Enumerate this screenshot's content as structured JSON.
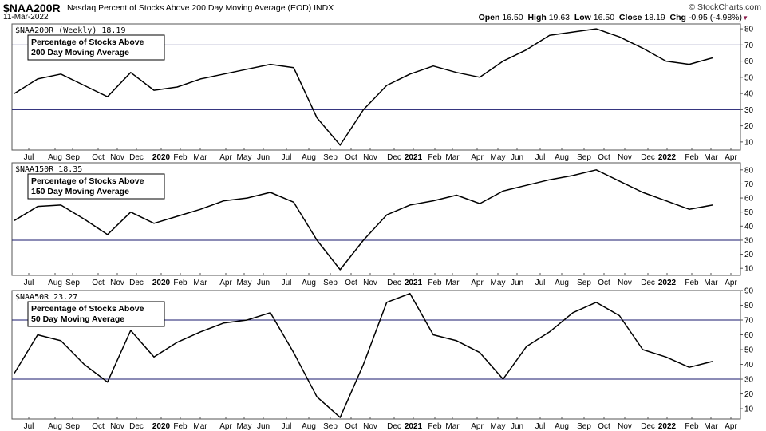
{
  "header": {
    "symbol": "$NAA200R",
    "description": "Nasdaq Percent of Stocks Above 200 Day Moving Average (EOD)  INDX",
    "date": "11-Mar-2022",
    "brand": "© StockCharts.com",
    "open_label": "Open",
    "open": "16.50",
    "high_label": "High",
    "high": "19.63",
    "low_label": "Low",
    "low": "16.50",
    "close_label": "Close",
    "close": "18.19",
    "chg_label": "Chg",
    "chg": "-0.95 (-4.98%)"
  },
  "colors": {
    "reference_line": "#1a1a6e",
    "price_line": "#000000",
    "frame": "#555555"
  },
  "chart_data": [
    {
      "type": "line",
      "title": "$NAA200R (Weekly) 18.19",
      "annotation": [
        "Percentage of Stocks Above",
        "200 Day Moving Average"
      ],
      "ylim": [
        5,
        83
      ],
      "yticks": [
        10,
        20,
        30,
        40,
        50,
        60,
        70,
        80
      ],
      "reference_lines": [
        30,
        70
      ],
      "x": [
        0,
        1.5,
        3,
        4.5,
        6,
        7.5,
        9,
        10.5,
        12,
        13.5,
        15,
        16.5,
        18,
        19.5,
        21,
        22.5,
        24,
        25.5,
        27,
        28.5,
        30,
        31.5,
        33,
        34.5,
        36,
        37.5,
        39,
        40.5,
        42,
        43.5,
        45
      ],
      "values": [
        40,
        49,
        52,
        45,
        38,
        53,
        42,
        44,
        49,
        52,
        55,
        58,
        56,
        25,
        8,
        30,
        45,
        52,
        57,
        53,
        50,
        60,
        67,
        76,
        78,
        80,
        75,
        68,
        60,
        58,
        62
      ]
    },
    {
      "type": "line",
      "title": "$NAA150R 18.35",
      "annotation": [
        "Percentage of Stocks Above",
        "150 Day Moving Average"
      ],
      "ylim": [
        5,
        85
      ],
      "yticks": [
        10,
        20,
        30,
        40,
        50,
        60,
        70,
        80
      ],
      "reference_lines": [
        30,
        70
      ],
      "x": [
        0,
        1.5,
        3,
        4.5,
        6,
        7.5,
        9,
        10.5,
        12,
        13.5,
        15,
        16.5,
        18,
        19.5,
        21,
        22.5,
        24,
        25.5,
        27,
        28.5,
        30,
        31.5,
        33,
        34.5,
        36,
        37.5,
        39,
        40.5,
        42,
        43.5,
        45
      ],
      "values": [
        44,
        54,
        55,
        45,
        34,
        50,
        42,
        47,
        52,
        58,
        60,
        64,
        57,
        30,
        9,
        30,
        48,
        55,
        58,
        62,
        56,
        65,
        69,
        73,
        76,
        80,
        72,
        64,
        58,
        52,
        55
      ]
    },
    {
      "type": "line",
      "title": "$NAA50R 23.27",
      "annotation": [
        "Percentage of Stocks Above",
        "50 Day Moving Average"
      ],
      "ylim": [
        3,
        90
      ],
      "yticks": [
        10,
        20,
        30,
        40,
        50,
        60,
        70,
        80,
        90
      ],
      "reference_lines": [
        30,
        70
      ],
      "x": [
        0,
        1.5,
        3,
        4.5,
        6,
        7.5,
        9,
        10.5,
        12,
        13.5,
        15,
        16.5,
        18,
        19.5,
        21,
        22.5,
        24,
        25.5,
        27,
        28.5,
        30,
        31.5,
        33,
        34.5,
        36,
        37.5,
        39,
        40.5,
        42,
        43.5,
        45
      ],
      "values": [
        34,
        60,
        56,
        40,
        28,
        63,
        45,
        55,
        62,
        68,
        70,
        75,
        48,
        18,
        4,
        40,
        82,
        88,
        60,
        56,
        48,
        30,
        52,
        62,
        75,
        82,
        73,
        50,
        45,
        38,
        42
      ]
    }
  ],
  "x_axis": {
    "ticks": [
      {
        "label": "Jul",
        "bold": false
      },
      {
        "label": "Aug",
        "bold": false
      },
      {
        "label": "Sep",
        "bold": false
      },
      {
        "label": "Oct",
        "bold": false
      },
      {
        "label": "Nov",
        "bold": false
      },
      {
        "label": "Dec",
        "bold": false
      },
      {
        "label": "2020",
        "bold": true
      },
      {
        "label": "Feb",
        "bold": false
      },
      {
        "label": "Mar",
        "bold": false
      },
      {
        "label": "Apr",
        "bold": false
      },
      {
        "label": "May",
        "bold": false
      },
      {
        "label": "Jun",
        "bold": false
      },
      {
        "label": "Jul",
        "bold": false
      },
      {
        "label": "Aug",
        "bold": false
      },
      {
        "label": "Sep",
        "bold": false
      },
      {
        "label": "Oct",
        "bold": false
      },
      {
        "label": "Nov",
        "bold": false
      },
      {
        "label": "Dec",
        "bold": false
      },
      {
        "label": "2021",
        "bold": true
      },
      {
        "label": "Feb",
        "bold": false
      },
      {
        "label": "Mar",
        "bold": false
      },
      {
        "label": "Apr",
        "bold": false
      },
      {
        "label": "May",
        "bold": false
      },
      {
        "label": "Jun",
        "bold": false
      },
      {
        "label": "Jul",
        "bold": false
      },
      {
        "label": "Aug",
        "bold": false
      },
      {
        "label": "Sep",
        "bold": false
      },
      {
        "label": "Oct",
        "bold": false
      },
      {
        "label": "Nov",
        "bold": false
      },
      {
        "label": "Dec",
        "bold": false
      },
      {
        "label": "2022",
        "bold": true
      },
      {
        "label": "Feb",
        "bold": false
      },
      {
        "label": "Mar",
        "bold": false
      },
      {
        "label": "Apr",
        "bold": false
      }
    ]
  }
}
